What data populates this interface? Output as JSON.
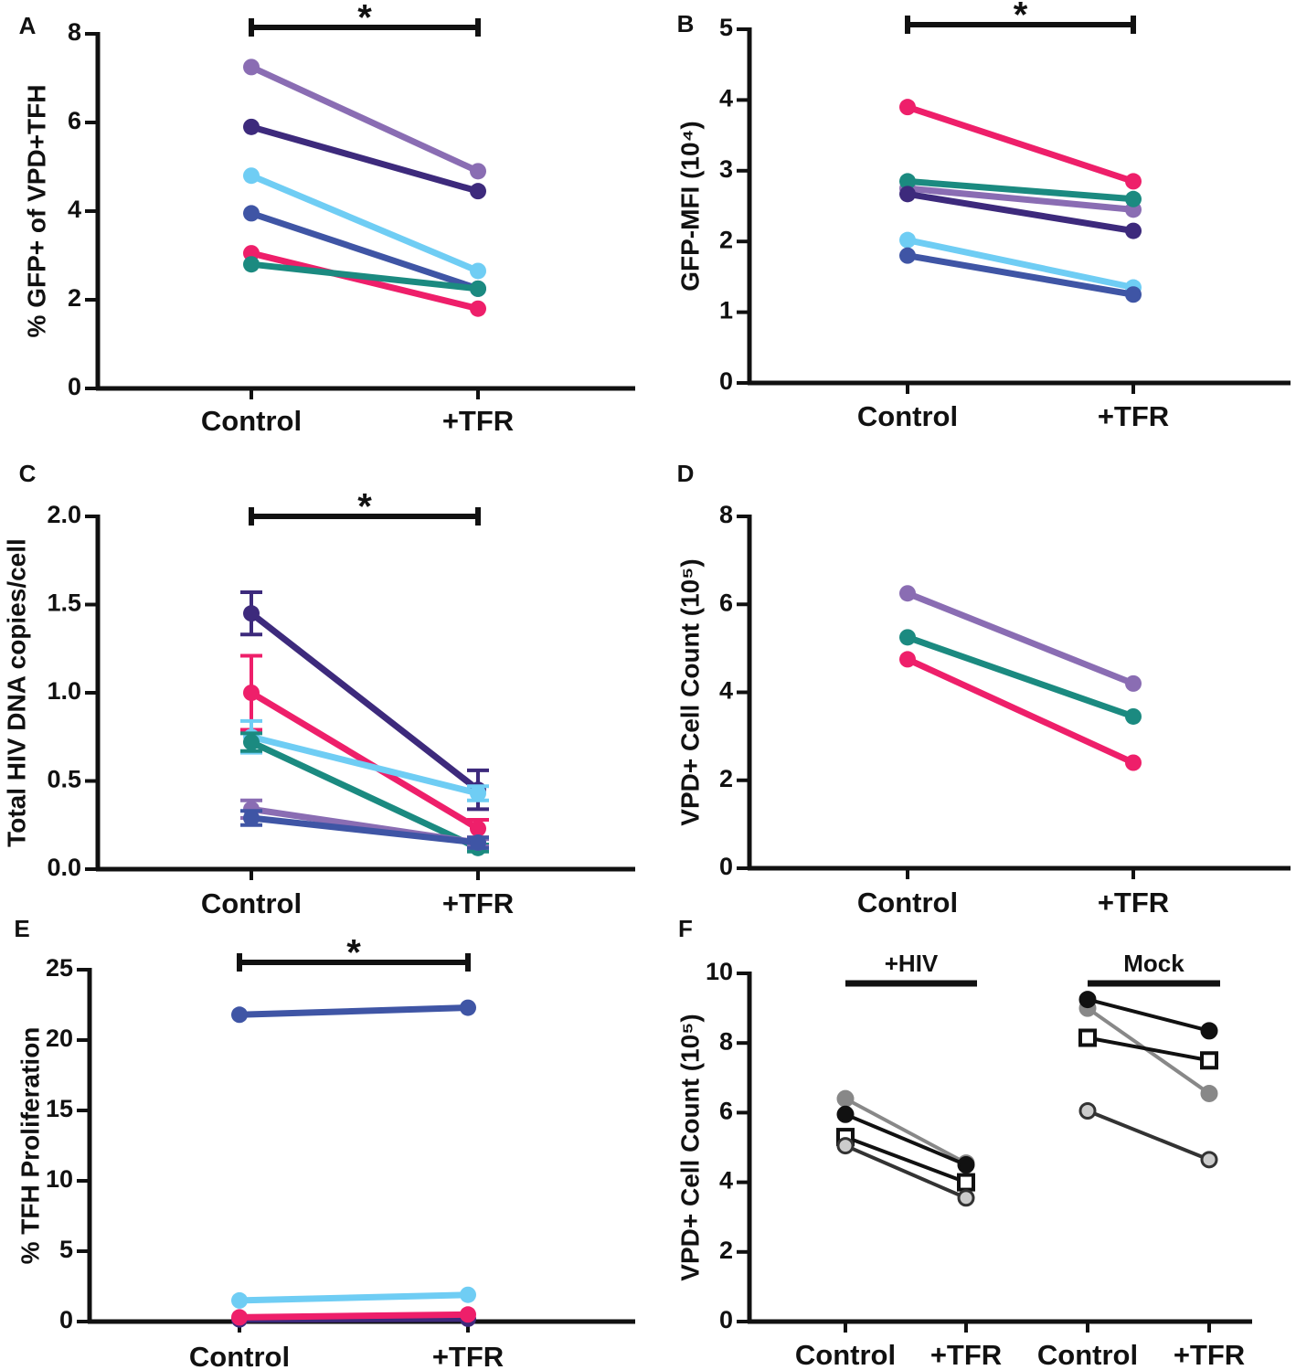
{
  "chart_data": [
    {
      "type": "line",
      "panel": "A",
      "ylabel": "% GFP+ of VPD+TFH",
      "annotation": "*",
      "categories": [
        "Control",
        "+TFR"
      ],
      "ylim": [
        0,
        8
      ],
      "yticks": [
        0,
        2,
        4,
        6,
        8
      ],
      "series": [
        {
          "color": "#8a6db3",
          "values": [
            7.25,
            4.9
          ]
        },
        {
          "color": "#3d2a7c",
          "values": [
            5.9,
            4.45
          ]
        },
        {
          "color": "#6fcdf4",
          "values": [
            4.8,
            2.65
          ]
        },
        {
          "color": "#3f55a5",
          "values": [
            3.95,
            2.25
          ]
        },
        {
          "color": "#ee1f6a",
          "values": [
            3.05,
            1.8
          ]
        },
        {
          "color": "#1b8a80",
          "values": [
            2.8,
            2.25
          ]
        }
      ]
    },
    {
      "type": "line",
      "panel": "B",
      "ylabel": "GFP-MFI (10⁴)",
      "annotation": "*",
      "categories": [
        "Control",
        "+TFR"
      ],
      "ylim": [
        0,
        5
      ],
      "yticks": [
        0,
        1,
        2,
        3,
        4,
        5
      ],
      "series": [
        {
          "color": "#ee1f6a",
          "values": [
            3.9,
            2.85
          ]
        },
        {
          "color": "#8a6db3",
          "values": [
            2.75,
            2.45
          ]
        },
        {
          "color": "#1b8a80",
          "values": [
            2.85,
            2.6
          ]
        },
        {
          "color": "#3d2a7c",
          "values": [
            2.67,
            2.15
          ]
        },
        {
          "color": "#6fcdf4",
          "values": [
            2.02,
            1.35
          ]
        },
        {
          "color": "#3f55a5",
          "values": [
            1.8,
            1.25
          ]
        }
      ]
    },
    {
      "type": "line",
      "panel": "C",
      "ylabel": "Total HIV DNA copies/cell",
      "annotation": "*",
      "categories": [
        "Control",
        "+TFR"
      ],
      "ylim": [
        0,
        2
      ],
      "yticks": [
        {
          "value": 0,
          "label": "0.0"
        },
        0.5,
        {
          "value": 1,
          "label": "1.0"
        },
        1.5,
        {
          "value": 2,
          "label": "2.0"
        }
      ],
      "series": [
        {
          "color": "#3d2a7c",
          "values": [
            1.45,
            0.45
          ],
          "errors": [
            0.12,
            0.11
          ]
        },
        {
          "color": "#ee1f6a",
          "values": [
            1.0,
            0.23
          ],
          "errors": [
            0.21,
            0.05
          ]
        },
        {
          "color": "#6fcdf4",
          "values": [
            0.75,
            0.43
          ],
          "errors": [
            0.09,
            0.04
          ]
        },
        {
          "color": "#1b8a80",
          "values": [
            0.72,
            0.12
          ],
          "errors": [
            0.05,
            0.02
          ]
        },
        {
          "color": "#8a6db3",
          "values": [
            0.34,
            0.15
          ],
          "errors": [
            0.05,
            0.02
          ]
        },
        {
          "color": "#3f55a5",
          "values": [
            0.29,
            0.15
          ],
          "errors": [
            0.04,
            0.03
          ]
        }
      ]
    },
    {
      "type": "line",
      "panel": "D",
      "ylabel": "VPD+ Cell Count (10⁵)",
      "categories": [
        "Control",
        "+TFR"
      ],
      "ylim": [
        0,
        8
      ],
      "yticks": [
        0,
        2,
        4,
        6,
        8
      ],
      "series": [
        {
          "color": "#8a6db3",
          "values": [
            6.25,
            4.2
          ]
        },
        {
          "color": "#1b8a80",
          "values": [
            5.25,
            3.45
          ]
        },
        {
          "color": "#ee1f6a",
          "values": [
            4.75,
            2.4
          ]
        }
      ]
    },
    {
      "type": "line",
      "panel": "E",
      "ylabel": "% TFH Proliferation",
      "annotation": "*",
      "categories": [
        "Control",
        "+TFR"
      ],
      "ylim": [
        0,
        25
      ],
      "yticks": [
        0,
        5,
        10,
        15,
        20,
        25
      ],
      "series": [
        {
          "color": "#3f55a5",
          "values": [
            21.8,
            22.3
          ]
        },
        {
          "color": "#6fcdf4",
          "values": [
            1.5,
            1.9
          ]
        },
        {
          "color": "#3d2a7c",
          "values": [
            0.15,
            0.2
          ]
        },
        {
          "color": "#ee1f6a",
          "values": [
            0.3,
            0.5
          ]
        }
      ]
    },
    {
      "type": "line",
      "panel": "F",
      "ylabel": "VPD+ Cell Count (10⁵)",
      "groups": [
        "+HIV",
        "Mock"
      ],
      "categories": [
        "Control",
        "+TFR",
        "Control",
        "+TFR"
      ],
      "ylim": [
        0,
        10
      ],
      "yticks": [
        0,
        2,
        4,
        6,
        8,
        10
      ],
      "series": [
        {
          "color": "#888888",
          "marker": "circle",
          "marker_fill": "#888888",
          "values": [
            6.4,
            4.55,
            9.0,
            6.55
          ]
        },
        {
          "color": "#111111",
          "marker": "circle",
          "marker_fill": "#111111",
          "values": [
            5.95,
            4.5,
            9.25,
            8.35
          ]
        },
        {
          "color": "#111111",
          "marker": "square",
          "marker_fill": "#ffffff",
          "values": [
            5.3,
            4.0,
            8.15,
            7.5
          ]
        },
        {
          "color": "#333333",
          "marker": "circle",
          "marker_fill": "#cccccc",
          "values": [
            5.05,
            3.55,
            6.05,
            4.65
          ]
        }
      ]
    }
  ]
}
